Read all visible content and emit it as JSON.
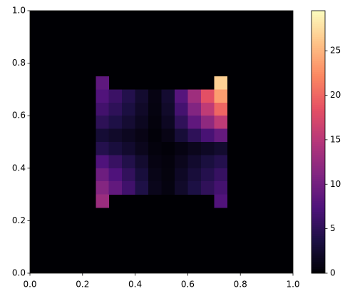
{
  "chart_data": {
    "type": "heatmap",
    "colormap": "magma",
    "xlim": [
      0,
      1
    ],
    "ylim": [
      0,
      1
    ],
    "xticks": [
      {
        "value": 0,
        "label": "0.0"
      },
      {
        "value": 0.2,
        "label": "0.2"
      },
      {
        "value": 0.4,
        "label": "0.4"
      },
      {
        "value": 0.6,
        "label": "0.6"
      },
      {
        "value": 0.8,
        "label": "0.8"
      },
      {
        "value": 1,
        "label": "1.0"
      }
    ],
    "yticks": [
      {
        "value": 0,
        "label": "0.0"
      },
      {
        "value": 0.2,
        "label": "0.2"
      },
      {
        "value": 0.4,
        "label": "0.4"
      },
      {
        "value": 0.6,
        "label": "0.6"
      },
      {
        "value": 0.8,
        "label": "0.8"
      },
      {
        "value": 1,
        "label": "1.0"
      }
    ],
    "zlim": [
      0,
      29.5
    ],
    "zticks": [
      0,
      5,
      10,
      15,
      20,
      25
    ],
    "x": [
      0.275,
      0.325,
      0.375,
      0.425,
      0.475,
      0.525,
      0.575,
      0.625,
      0.675,
      0.725
    ],
    "y": [
      0.725,
      0.675,
      0.625,
      0.575,
      0.525,
      0.475,
      0.425,
      0.375,
      0.325,
      0.275
    ],
    "values": [
      [
        8.5,
        null,
        null,
        null,
        null,
        null,
        null,
        null,
        null,
        26.7
      ],
      [
        7.5,
        5.9,
        4.2,
        2.5,
        0.8,
        2.6,
        7.9,
        13.1,
        18.3,
        23.5
      ],
      [
        6.4,
        5.0,
        3.5,
        2.1,
        0.7,
        2.2,
        6.6,
        11.1,
        15.5,
        19.9
      ],
      [
        4.9,
        3.8,
        2.7,
        1.6,
        0.5,
        1.7,
        5.1,
        8.6,
        12.0,
        15.4
      ],
      [
        2.8,
        2.2,
        1.6,
        1.0,
        0.3,
        1.0,
        3.0,
        5.0,
        6.9,
        8.9
      ],
      [
        4.3,
        3.3,
        2.4,
        1.4,
        0.5,
        0.3,
        0.8,
        1.4,
        1.9,
        2.5
      ],
      [
        7.4,
        5.7,
        4.1,
        2.5,
        0.8,
        0.5,
        1.4,
        2.4,
        3.4,
        4.3
      ],
      [
        9.6,
        7.4,
        5.3,
        3.2,
        1.1,
        0.6,
        1.9,
        3.1,
        4.3,
        5.6
      ],
      [
        11.3,
        8.8,
        6.3,
        3.8,
        1.3,
        0.7,
        2.2,
        3.7,
        5.1,
        6.6
      ],
      [
        12.8,
        null,
        null,
        null,
        null,
        null,
        null,
        null,
        null,
        7.5
      ]
    ]
  }
}
